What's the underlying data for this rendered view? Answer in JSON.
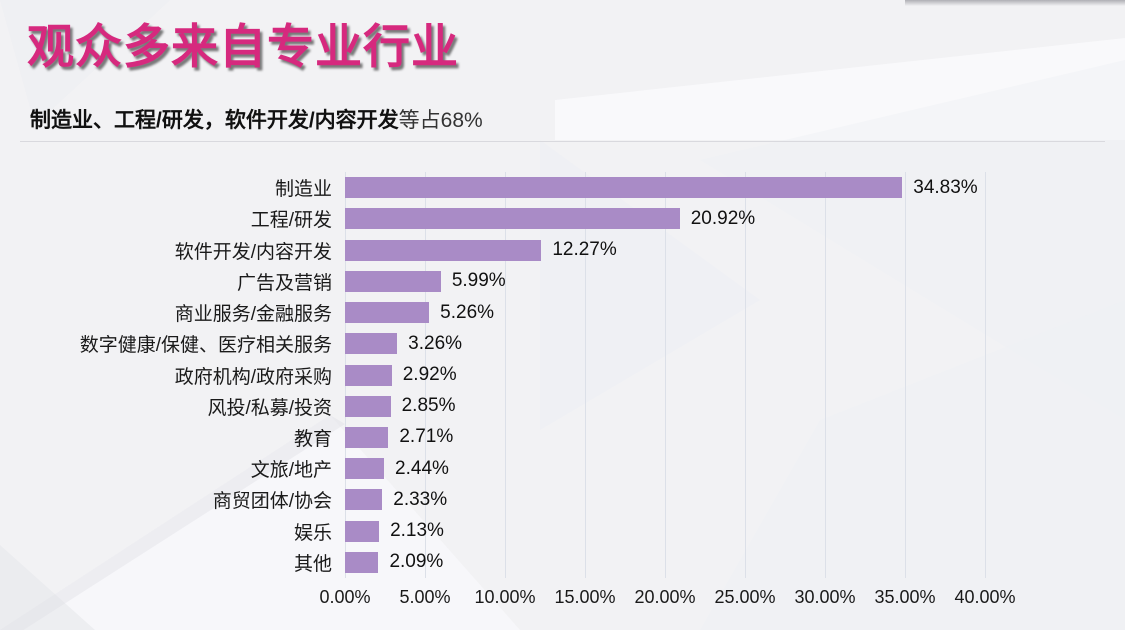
{
  "slide": {
    "title": "观众多来自专业行业",
    "subtitle": {
      "bold": "制造业、工程/研发，软件开发/内容开发",
      "regular": "等占68%"
    }
  },
  "chart_data": {
    "type": "bar",
    "orientation": "horizontal",
    "title": "",
    "xlabel": "",
    "ylabel": "",
    "xlim": [
      0,
      40
    ],
    "grid": true,
    "legend": false,
    "x_tick_labels": [
      "0.00%",
      "5.00%",
      "10.00%",
      "15.00%",
      "20.00%",
      "25.00%",
      "30.00%",
      "35.00%",
      "40.00%"
    ],
    "categories": [
      "制造业",
      "工程/研发",
      "软件开发/内容开发",
      "广告及营销",
      "商业服务/金融服务",
      "数字健康/保健、医疗相关服务",
      "政府机构/政府采购",
      "风投/私募/投资",
      "教育",
      "文旅/地产",
      "商贸团体/协会",
      "娱乐",
      "其他"
    ],
    "values": [
      34.83,
      20.92,
      12.27,
      5.99,
      5.26,
      3.26,
      2.92,
      2.85,
      2.71,
      2.44,
      2.33,
      2.13,
      2.09
    ],
    "value_labels": [
      "34.83%",
      "20.92%",
      "12.27%",
      "5.99%",
      "5.26%",
      "3.26%",
      "2.92%",
      "2.85%",
      "2.71%",
      "2.44%",
      "2.33%",
      "2.13%",
      "2.09%"
    ]
  },
  "colors": {
    "title": "#d6297e",
    "bar": "#a98bc6",
    "gridline": "#dce0e8",
    "text": "#1a1a1a",
    "divider": "#d9d9de",
    "background": "#f2f2f4"
  }
}
